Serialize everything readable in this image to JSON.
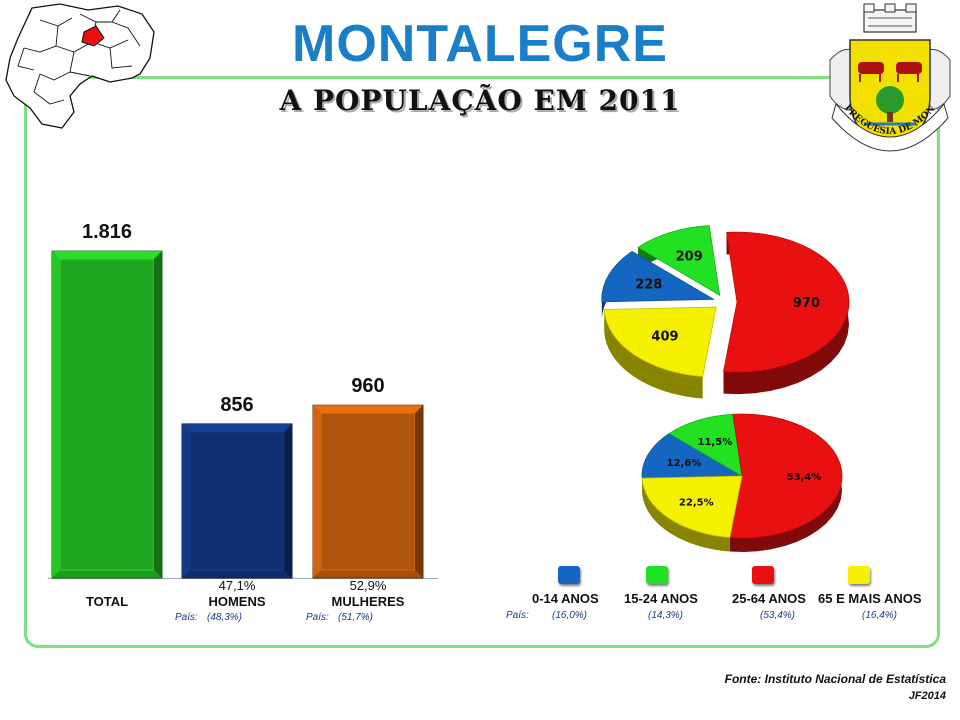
{
  "title": "MONTALEGRE",
  "subtitle": "A POPULAÇÃO EM 2011",
  "crest_text": "FREGUESIA DE MONTALEGRE",
  "source": "Fonte: Instituto Nacional de Estatística",
  "credit": "JF2014",
  "pais_label": "País:",
  "colors": {
    "title": "#1a7fc8",
    "frame": "#7ee07e",
    "total": "#1e9e1e",
    "homens": "#0f2d6b",
    "mulheres": "#a84f0c",
    "age_0_14": "#1566c0",
    "age_15_24": "#22e022",
    "age_25_64": "#e81010",
    "age_65": "#f4f000"
  },
  "chart_data": [
    {
      "type": "bar",
      "categories": [
        "TOTAL",
        "HOMENS",
        "MULHERES"
      ],
      "values": [
        1816,
        856,
        960
      ],
      "value_labels": [
        "1.816",
        "856",
        "960"
      ],
      "percent_labels": [
        "",
        "47,1%",
        "52,9%"
      ],
      "pais_labels": [
        "",
        "(48,3%)",
        "(51,7%)"
      ],
      "ylim": [
        0,
        2000
      ]
    },
    {
      "type": "pie",
      "labels": [
        "0-14 ANOS",
        "15-24 ANOS",
        "25-64 ANOS",
        "65 E MAIS ANOS"
      ],
      "values": [
        228,
        209,
        970,
        409
      ]
    },
    {
      "type": "pie",
      "labels": [
        "0-14 ANOS",
        "15-24 ANOS",
        "25-64 ANOS",
        "65 E MAIS ANOS"
      ],
      "values": [
        12.6,
        11.5,
        53.4,
        22.5
      ],
      "value_labels": [
        "12,6%",
        "11,5%",
        "53,4%",
        "22,5%"
      ]
    }
  ],
  "legend": {
    "items": [
      {
        "label": "0-14 ANOS",
        "pais": "(16,0%)"
      },
      {
        "label": "15-24 ANOS",
        "pais": "(14,3%)"
      },
      {
        "label": "25-64 ANOS",
        "pais": "(53,4%)"
      },
      {
        "label": "65 E MAIS ANOS",
        "pais": "(16,4%)"
      }
    ]
  }
}
